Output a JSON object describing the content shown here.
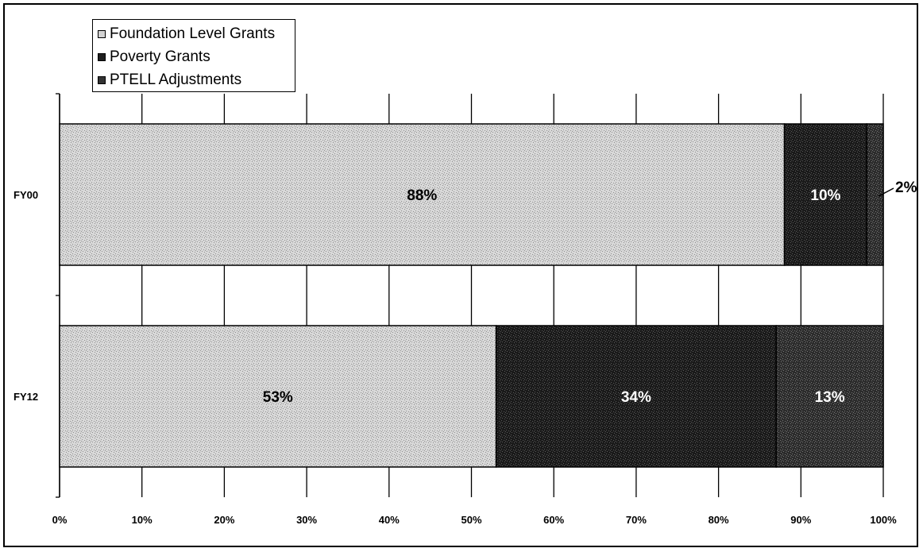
{
  "chart_data": {
    "type": "bar",
    "orientation": "horizontal",
    "stacked": true,
    "categories": [
      "FY00",
      "FY12"
    ],
    "series": [
      {
        "name": "Foundation Level Grants",
        "values": [
          88,
          53
        ],
        "labels": [
          "88%",
          "53%"
        ],
        "color": "#d3d3d3",
        "label_color": "#000000"
      },
      {
        "name": "Poverty Grants",
        "values": [
          10,
          34
        ],
        "labels": [
          "10%",
          "34%"
        ],
        "color": "#1e1e1e",
        "label_color": "#ffffff"
      },
      {
        "name": "PTELL Adjustments",
        "values": [
          2,
          13
        ],
        "labels": [
          "2%",
          "13%"
        ],
        "color": "#333333",
        "label_color": "#ffffff"
      }
    ],
    "xlim": [
      0,
      100
    ],
    "x_ticks": [
      "0%",
      "10%",
      "20%",
      "30%",
      "40%",
      "50%",
      "60%",
      "70%",
      "80%",
      "90%",
      "100%"
    ],
    "grid": true,
    "legend_position": "top-left"
  }
}
